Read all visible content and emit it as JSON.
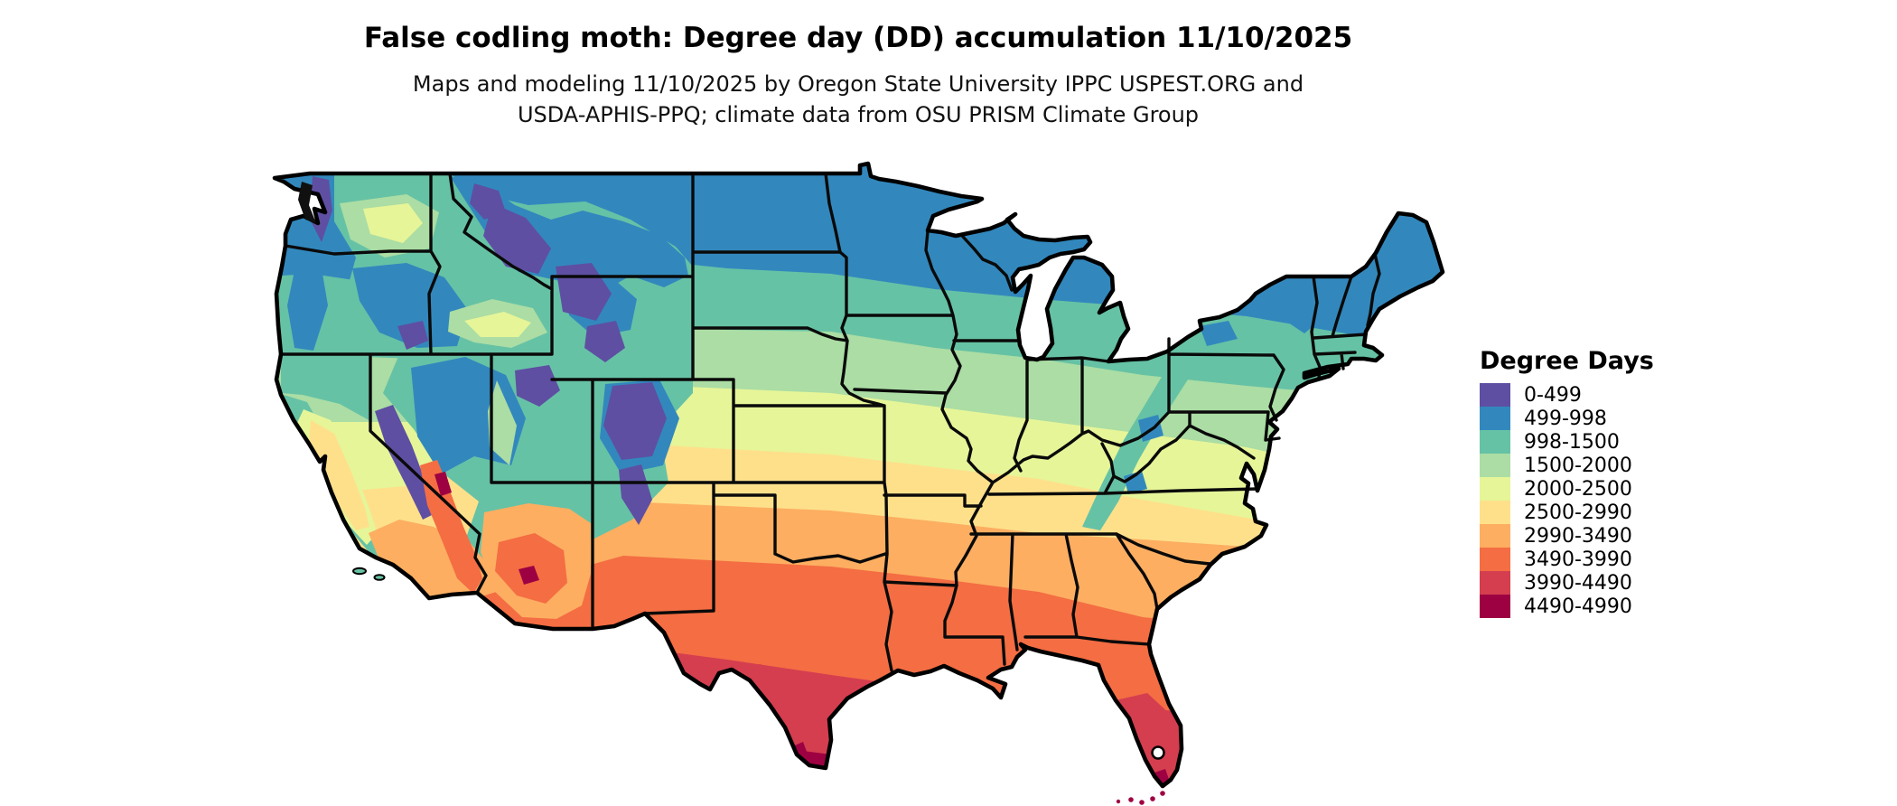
{
  "title": "False codling moth: Degree day (DD) accumulation 11/10/2025",
  "subtitle": {
    "line1": "Maps and modeling 11/10/2025 by Oregon State University IPPC USPEST.ORG and",
    "line2": "USDA-APHIS-PPQ; climate data from OSU PRISM Climate Group"
  },
  "legend": {
    "title": "Degree Days",
    "items": [
      {
        "label": "0-499",
        "color": "#5e4fa2"
      },
      {
        "label": "499-998",
        "color": "#3288bd"
      },
      {
        "label": "998-1500",
        "color": "#66c2a5"
      },
      {
        "label": "1500-2000",
        "color": "#abdda4"
      },
      {
        "label": "2000-2500",
        "color": "#e6f598"
      },
      {
        "label": "2500-2990",
        "color": "#fee08b"
      },
      {
        "label": "2990-3490",
        "color": "#fdae61"
      },
      {
        "label": "3490-3990",
        "color": "#f46d43"
      },
      {
        "label": "3990-4490",
        "color": "#d53e4f"
      },
      {
        "label": "4490-4990",
        "color": "#9e0142"
      }
    ]
  }
}
